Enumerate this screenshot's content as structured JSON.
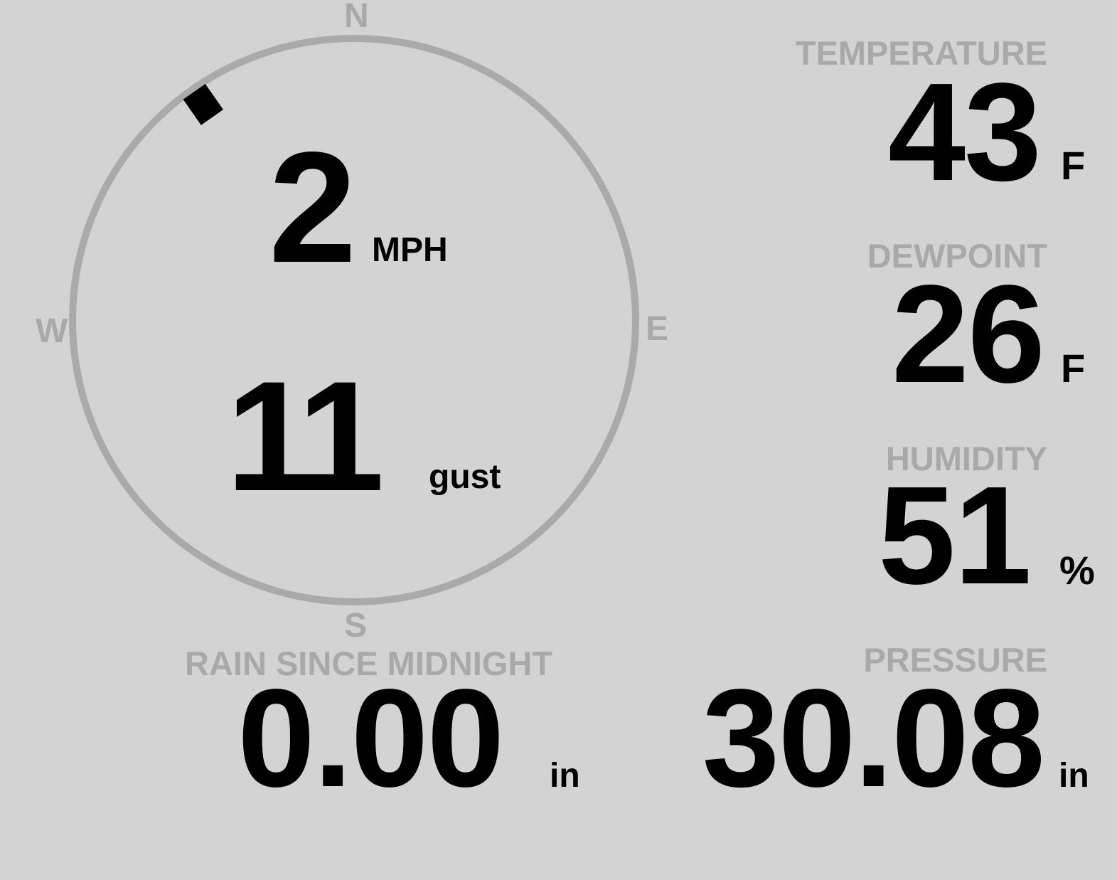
{
  "colors": {
    "background": "#d3d3d3",
    "label": "#a9a9a9",
    "value": "#000000",
    "compass_ring": "#aaaaaa"
  },
  "wind": {
    "speed": "2",
    "speed_unit": "MPH",
    "gust": "11",
    "gust_label": "gust",
    "direction_degrees": 325,
    "compass": {
      "n": "N",
      "e": "E",
      "s": "S",
      "w": "W"
    }
  },
  "temperature": {
    "label": "TEMPERATURE",
    "value": "43",
    "unit": "F"
  },
  "dewpoint": {
    "label": "DEWPOINT",
    "value": "26",
    "unit": "F"
  },
  "humidity": {
    "label": "HUMIDITY",
    "value": "51",
    "unit": "%"
  },
  "rain": {
    "label": "RAIN SINCE MIDNIGHT",
    "value": "0.00",
    "unit": "in"
  },
  "pressure": {
    "label": "PRESSURE",
    "value": "30.08",
    "unit": "in"
  }
}
